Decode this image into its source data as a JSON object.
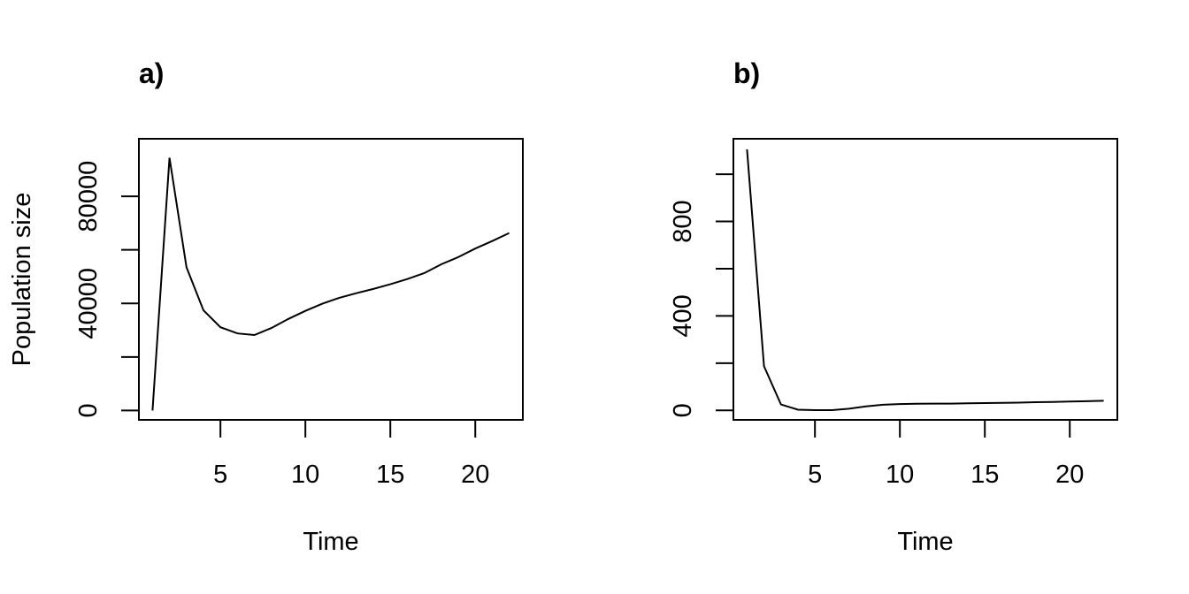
{
  "figure": {
    "background": "#ffffff",
    "line_color": "#000000"
  },
  "chart_data": [
    {
      "type": "line",
      "panel": "a",
      "title": "a)",
      "xlabel": "Time",
      "ylabel": "Population size",
      "xlim": [
        0.2,
        22.8
      ],
      "ylim": [
        -3500,
        101500
      ],
      "xticks": [
        5,
        10,
        15,
        20
      ],
      "xtick_labels": [
        "5",
        "10",
        "15",
        "20"
      ],
      "yticks": [
        0,
        20000,
        40000,
        60000,
        80000
      ],
      "ytick_labels": [
        "0",
        "",
        "40000",
        "",
        "80000"
      ],
      "grid": false,
      "legend": null,
      "x": [
        1,
        2,
        3,
        4,
        5,
        6,
        7,
        8,
        9,
        10,
        11,
        12,
        13,
        14,
        15,
        16,
        17,
        18,
        19,
        20,
        21,
        22
      ],
      "y": [
        0,
        94400,
        53500,
        37400,
        31100,
        28800,
        28200,
        30800,
        34200,
        37200,
        39900,
        42100,
        43800,
        45400,
        47150,
        49100,
        51300,
        54600,
        57300,
        60500,
        63300,
        66300
      ]
    },
    {
      "type": "line",
      "panel": "b",
      "title": "b)",
      "xlabel": "Time",
      "ylabel": "",
      "xlim": [
        0.2,
        22.8
      ],
      "ylim": [
        -40,
        1150
      ],
      "xticks": [
        5,
        10,
        15,
        20
      ],
      "xtick_labels": [
        "5",
        "10",
        "15",
        "20"
      ],
      "yticks": [
        0,
        200,
        400,
        600,
        800,
        1000
      ],
      "ytick_labels": [
        "0",
        "",
        "400",
        "",
        "800",
        ""
      ],
      "grid": false,
      "legend": null,
      "x": [
        1,
        2,
        3,
        4,
        5,
        6,
        7,
        8,
        9,
        10,
        11,
        12,
        13,
        14,
        15,
        16,
        17,
        18,
        19,
        20,
        21,
        22
      ],
      "y": [
        1105,
        187,
        25,
        3,
        1,
        1,
        7,
        17,
        24,
        27,
        28,
        29,
        29,
        30,
        31,
        32,
        33,
        35,
        36,
        38,
        39,
        41
      ]
    }
  ]
}
